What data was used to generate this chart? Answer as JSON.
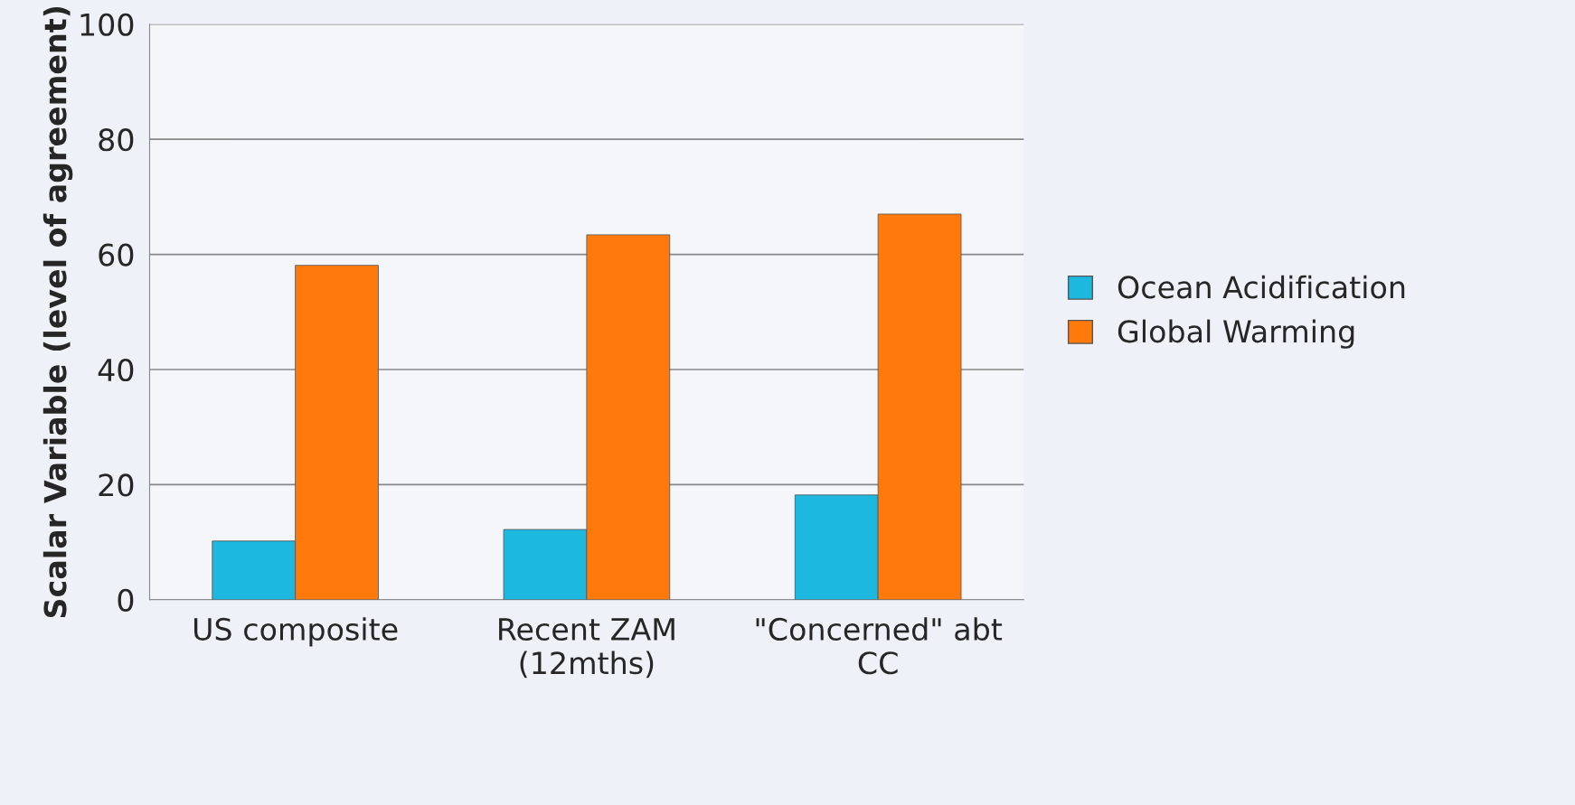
{
  "chart_data": {
    "type": "bar",
    "ylabel": "Scalar Variable (level of agreement)",
    "categories": [
      "US composite",
      "Recent ZAM\n(12mths)",
      "\"Concerned\" abt\nCC"
    ],
    "series": [
      {
        "name": "Ocean Acidification",
        "color": "#1cb8e0",
        "values": [
          10.2,
          12.2,
          18.2
        ]
      },
      {
        "name": "Global Warming",
        "color": "#ff7a0a",
        "values": [
          58.1,
          63.4,
          67.0
        ]
      }
    ],
    "ylim": [
      0,
      100
    ],
    "yticks": [
      0,
      20,
      40,
      60,
      80,
      100
    ],
    "grid": "y",
    "legend": "right"
  }
}
